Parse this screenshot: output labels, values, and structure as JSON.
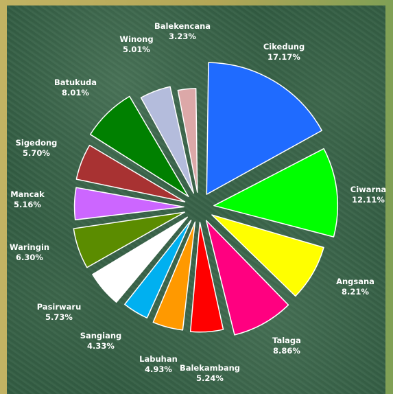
{
  "chart_data": {
    "type": "pie",
    "slices": [
      {
        "label": "Cikedung",
        "value": 17.17,
        "value_label": "17.17%",
        "color": "#1f6bff"
      },
      {
        "label": "Ciwarna",
        "value": 12.11,
        "value_label": "12.11%",
        "color": "#00ff00"
      },
      {
        "label": "Angsana",
        "value": 8.21,
        "value_label": "8.21%",
        "color": "#ffff00"
      },
      {
        "label": "Talaga",
        "value": 8.86,
        "value_label": "8.86%",
        "color": "#ff0080"
      },
      {
        "label": "Balekambang",
        "value": 5.24,
        "value_label": "5.24%",
        "color": "#ff0000"
      },
      {
        "label": "Labuhan",
        "value": 4.93,
        "value_label": "4.93%",
        "color": "#ff9900"
      },
      {
        "label": "Sangiang",
        "value": 4.33,
        "value_label": "4.33%",
        "color": "#00b0f0"
      },
      {
        "label": "Pasirwaru",
        "value": 5.73,
        "value_label": "5.73%",
        "color": "#ffffff"
      },
      {
        "label": "Waringin",
        "value": 6.3,
        "value_label": "6.30%",
        "color": "#5b8c00"
      },
      {
        "label": "Mancak",
        "value": 5.16,
        "value_label": "5.16%",
        "color": "#cc66ff"
      },
      {
        "label": "Sigedong",
        "value": 5.7,
        "value_label": "5.70%",
        "color": "#a83232"
      },
      {
        "label": "Batukuda",
        "value": 8.01,
        "value_label": "8.01%",
        "color": "#008000"
      },
      {
        "label": "Winong",
        "value": 5.01,
        "value_label": "5.01%",
        "color": "#b4bcdc"
      },
      {
        "label": "Balekencana",
        "value": 3.23,
        "value_label": "3.23%",
        "color": "#dca8a8"
      }
    ],
    "legend": "none",
    "data_labels": "outside"
  }
}
